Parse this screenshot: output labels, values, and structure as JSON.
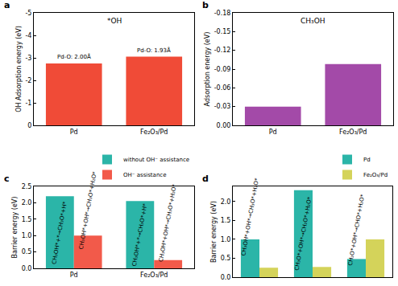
{
  "chart_data": [
    {
      "panel": "a",
      "type": "bar",
      "title": "*OH",
      "categories": [
        "Pd",
        "Fe₂O₃/Pd"
      ],
      "values": [
        -2.75,
        -3.05
      ],
      "color": "#f04b37",
      "ylabel": "OH Adsorption energy (eV)",
      "ylim": [
        0,
        -5
      ],
      "yticks": [
        -5,
        -4,
        -3,
        -2,
        -1,
        0
      ],
      "annotations": [
        {
          "text": "Pd-O: 2.00Å",
          "category": "Pd"
        },
        {
          "text": "Pd-O: 1.93Å",
          "category": "Fe₂O₃/Pd"
        }
      ]
    },
    {
      "panel": "b",
      "type": "bar",
      "title": "CH₃OH",
      "categories": [
        "Pd",
        "Fe₂O₃/Pd"
      ],
      "values": [
        -0.03,
        -0.098
      ],
      "color": "#a34aa8",
      "ylabel": "Adsorption energy (eV)",
      "ylim": [
        0,
        -0.18
      ],
      "yticks": [
        -0.18,
        -0.15,
        -0.12,
        -0.09,
        -0.06,
        -0.03,
        {
          "value": 0,
          "label": "0.00"
        }
      ]
    },
    {
      "panel": "c",
      "type": "bar",
      "categories": [
        "Pd",
        "Fe₂O₃/Pd"
      ],
      "series": [
        {
          "name": "without OH⁻ assistance",
          "color": "#2bb5a8",
          "values": [
            2.2,
            2.05
          ]
        },
        {
          "name": "OH⁻ assistance",
          "color": "#f25a4a",
          "values": [
            1.0,
            0.25
          ]
        }
      ],
      "ylabel": "Barrier energy (eV)",
      "ylim": [
        0,
        2.5
      ],
      "yticks": [
        {
          "value": 0,
          "label": "0.0"
        },
        0.5,
        {
          "value": 1,
          "label": "1.0"
        },
        1.5,
        {
          "value": 2,
          "label": "2.0"
        },
        2.5
      ],
      "legend": "top right",
      "annotations": [
        {
          "text": "CH₃OH*+*→CH₃O*+H*",
          "category": "Pd",
          "series": "without OH⁻ assistance"
        },
        {
          "text": "CH₃OH*+OH*→CH₃O*+H₂O*",
          "category": "Pd",
          "series": "OH⁻ assistance"
        },
        {
          "text": "CH₃OH*+*→CH₃O*+H*",
          "category": "Fe₂O₃/Pd",
          "series": "without OH⁻ assistance"
        },
        {
          "text": "CH₃OH*+OH*→CH₃O*+H₂O*",
          "category": "Fe₂O₃/Pd",
          "series": "OH⁻ assistance"
        }
      ]
    },
    {
      "panel": "d",
      "type": "bar",
      "categories": [
        "CH₃OH*+OH*→CH₃O*+H₂O*",
        "CH₃O*+OH*→CH₂O*+H₂O*",
        "CH₂O*+OH*→CHO*+H₂O*"
      ],
      "series": [
        {
          "name": "Pd",
          "color": "#2bb5a8",
          "values": [
            1.0,
            2.3,
            0.48
          ]
        },
        {
          "name": "Fe₂O₃/Pd",
          "color": "#d4d35a",
          "values": [
            0.25,
            0.27,
            1.0
          ]
        }
      ],
      "ylabel": "Barrier energy (eV)",
      "ylim": [
        0,
        2.4
      ],
      "yticks": [
        {
          "value": 0,
          "label": "0.0"
        },
        0.5,
        {
          "value": 1,
          "label": "1.0"
        },
        1.5,
        {
          "value": 2,
          "label": "2.0"
        }
      ],
      "legend": "top right",
      "tick_labels": "y"
    }
  ]
}
